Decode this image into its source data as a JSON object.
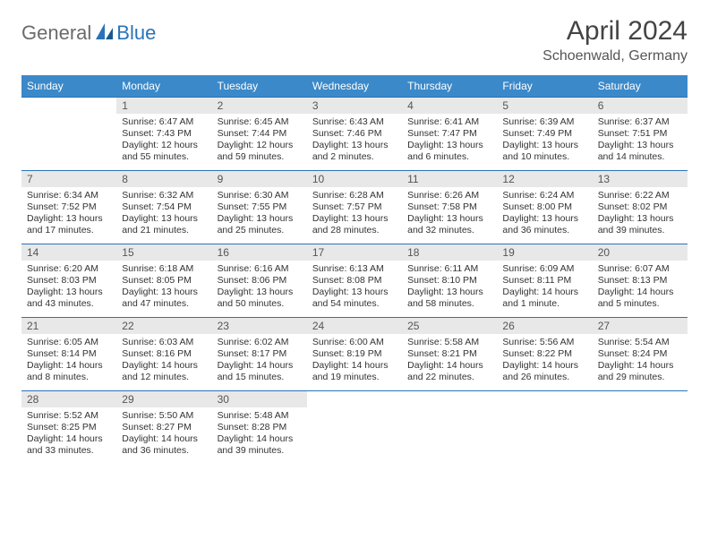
{
  "logo": {
    "text1": "General",
    "text2": "Blue"
  },
  "title": "April 2024",
  "subtitle": "Schoenwald, Germany",
  "colors": {
    "header_bg": "#3b89c9",
    "header_text": "#ffffff",
    "row_border": "#2a73b8",
    "daynum_bg": "#e8e8e8",
    "accent": "#2a73b8",
    "logo_gray": "#6b6b6b"
  },
  "weekdays": [
    "Sunday",
    "Monday",
    "Tuesday",
    "Wednesday",
    "Thursday",
    "Friday",
    "Saturday"
  ],
  "grid": [
    [
      {
        "n": "",
        "l1": "",
        "l2": "",
        "l3": "",
        "l4": ""
      },
      {
        "n": "1",
        "l1": "Sunrise: 6:47 AM",
        "l2": "Sunset: 7:43 PM",
        "l3": "Daylight: 12 hours",
        "l4": "and 55 minutes."
      },
      {
        "n": "2",
        "l1": "Sunrise: 6:45 AM",
        "l2": "Sunset: 7:44 PM",
        "l3": "Daylight: 12 hours",
        "l4": "and 59 minutes."
      },
      {
        "n": "3",
        "l1": "Sunrise: 6:43 AM",
        "l2": "Sunset: 7:46 PM",
        "l3": "Daylight: 13 hours",
        "l4": "and 2 minutes."
      },
      {
        "n": "4",
        "l1": "Sunrise: 6:41 AM",
        "l2": "Sunset: 7:47 PM",
        "l3": "Daylight: 13 hours",
        "l4": "and 6 minutes."
      },
      {
        "n": "5",
        "l1": "Sunrise: 6:39 AM",
        "l2": "Sunset: 7:49 PM",
        "l3": "Daylight: 13 hours",
        "l4": "and 10 minutes."
      },
      {
        "n": "6",
        "l1": "Sunrise: 6:37 AM",
        "l2": "Sunset: 7:51 PM",
        "l3": "Daylight: 13 hours",
        "l4": "and 14 minutes."
      }
    ],
    [
      {
        "n": "7",
        "l1": "Sunrise: 6:34 AM",
        "l2": "Sunset: 7:52 PM",
        "l3": "Daylight: 13 hours",
        "l4": "and 17 minutes."
      },
      {
        "n": "8",
        "l1": "Sunrise: 6:32 AM",
        "l2": "Sunset: 7:54 PM",
        "l3": "Daylight: 13 hours",
        "l4": "and 21 minutes."
      },
      {
        "n": "9",
        "l1": "Sunrise: 6:30 AM",
        "l2": "Sunset: 7:55 PM",
        "l3": "Daylight: 13 hours",
        "l4": "and 25 minutes."
      },
      {
        "n": "10",
        "l1": "Sunrise: 6:28 AM",
        "l2": "Sunset: 7:57 PM",
        "l3": "Daylight: 13 hours",
        "l4": "and 28 minutes."
      },
      {
        "n": "11",
        "l1": "Sunrise: 6:26 AM",
        "l2": "Sunset: 7:58 PM",
        "l3": "Daylight: 13 hours",
        "l4": "and 32 minutes."
      },
      {
        "n": "12",
        "l1": "Sunrise: 6:24 AM",
        "l2": "Sunset: 8:00 PM",
        "l3": "Daylight: 13 hours",
        "l4": "and 36 minutes."
      },
      {
        "n": "13",
        "l1": "Sunrise: 6:22 AM",
        "l2": "Sunset: 8:02 PM",
        "l3": "Daylight: 13 hours",
        "l4": "and 39 minutes."
      }
    ],
    [
      {
        "n": "14",
        "l1": "Sunrise: 6:20 AM",
        "l2": "Sunset: 8:03 PM",
        "l3": "Daylight: 13 hours",
        "l4": "and 43 minutes."
      },
      {
        "n": "15",
        "l1": "Sunrise: 6:18 AM",
        "l2": "Sunset: 8:05 PM",
        "l3": "Daylight: 13 hours",
        "l4": "and 47 minutes."
      },
      {
        "n": "16",
        "l1": "Sunrise: 6:16 AM",
        "l2": "Sunset: 8:06 PM",
        "l3": "Daylight: 13 hours",
        "l4": "and 50 minutes."
      },
      {
        "n": "17",
        "l1": "Sunrise: 6:13 AM",
        "l2": "Sunset: 8:08 PM",
        "l3": "Daylight: 13 hours",
        "l4": "and 54 minutes."
      },
      {
        "n": "18",
        "l1": "Sunrise: 6:11 AM",
        "l2": "Sunset: 8:10 PM",
        "l3": "Daylight: 13 hours",
        "l4": "and 58 minutes."
      },
      {
        "n": "19",
        "l1": "Sunrise: 6:09 AM",
        "l2": "Sunset: 8:11 PM",
        "l3": "Daylight: 14 hours",
        "l4": "and 1 minute."
      },
      {
        "n": "20",
        "l1": "Sunrise: 6:07 AM",
        "l2": "Sunset: 8:13 PM",
        "l3": "Daylight: 14 hours",
        "l4": "and 5 minutes."
      }
    ],
    [
      {
        "n": "21",
        "l1": "Sunrise: 6:05 AM",
        "l2": "Sunset: 8:14 PM",
        "l3": "Daylight: 14 hours",
        "l4": "and 8 minutes."
      },
      {
        "n": "22",
        "l1": "Sunrise: 6:03 AM",
        "l2": "Sunset: 8:16 PM",
        "l3": "Daylight: 14 hours",
        "l4": "and 12 minutes."
      },
      {
        "n": "23",
        "l1": "Sunrise: 6:02 AM",
        "l2": "Sunset: 8:17 PM",
        "l3": "Daylight: 14 hours",
        "l4": "and 15 minutes."
      },
      {
        "n": "24",
        "l1": "Sunrise: 6:00 AM",
        "l2": "Sunset: 8:19 PM",
        "l3": "Daylight: 14 hours",
        "l4": "and 19 minutes."
      },
      {
        "n": "25",
        "l1": "Sunrise: 5:58 AM",
        "l2": "Sunset: 8:21 PM",
        "l3": "Daylight: 14 hours",
        "l4": "and 22 minutes."
      },
      {
        "n": "26",
        "l1": "Sunrise: 5:56 AM",
        "l2": "Sunset: 8:22 PM",
        "l3": "Daylight: 14 hours",
        "l4": "and 26 minutes."
      },
      {
        "n": "27",
        "l1": "Sunrise: 5:54 AM",
        "l2": "Sunset: 8:24 PM",
        "l3": "Daylight: 14 hours",
        "l4": "and 29 minutes."
      }
    ],
    [
      {
        "n": "28",
        "l1": "Sunrise: 5:52 AM",
        "l2": "Sunset: 8:25 PM",
        "l3": "Daylight: 14 hours",
        "l4": "and 33 minutes."
      },
      {
        "n": "29",
        "l1": "Sunrise: 5:50 AM",
        "l2": "Sunset: 8:27 PM",
        "l3": "Daylight: 14 hours",
        "l4": "and 36 minutes."
      },
      {
        "n": "30",
        "l1": "Sunrise: 5:48 AM",
        "l2": "Sunset: 8:28 PM",
        "l3": "Daylight: 14 hours",
        "l4": "and 39 minutes."
      },
      {
        "n": "",
        "l1": "",
        "l2": "",
        "l3": "",
        "l4": ""
      },
      {
        "n": "",
        "l1": "",
        "l2": "",
        "l3": "",
        "l4": ""
      },
      {
        "n": "",
        "l1": "",
        "l2": "",
        "l3": "",
        "l4": ""
      },
      {
        "n": "",
        "l1": "",
        "l2": "",
        "l3": "",
        "l4": ""
      }
    ]
  ]
}
